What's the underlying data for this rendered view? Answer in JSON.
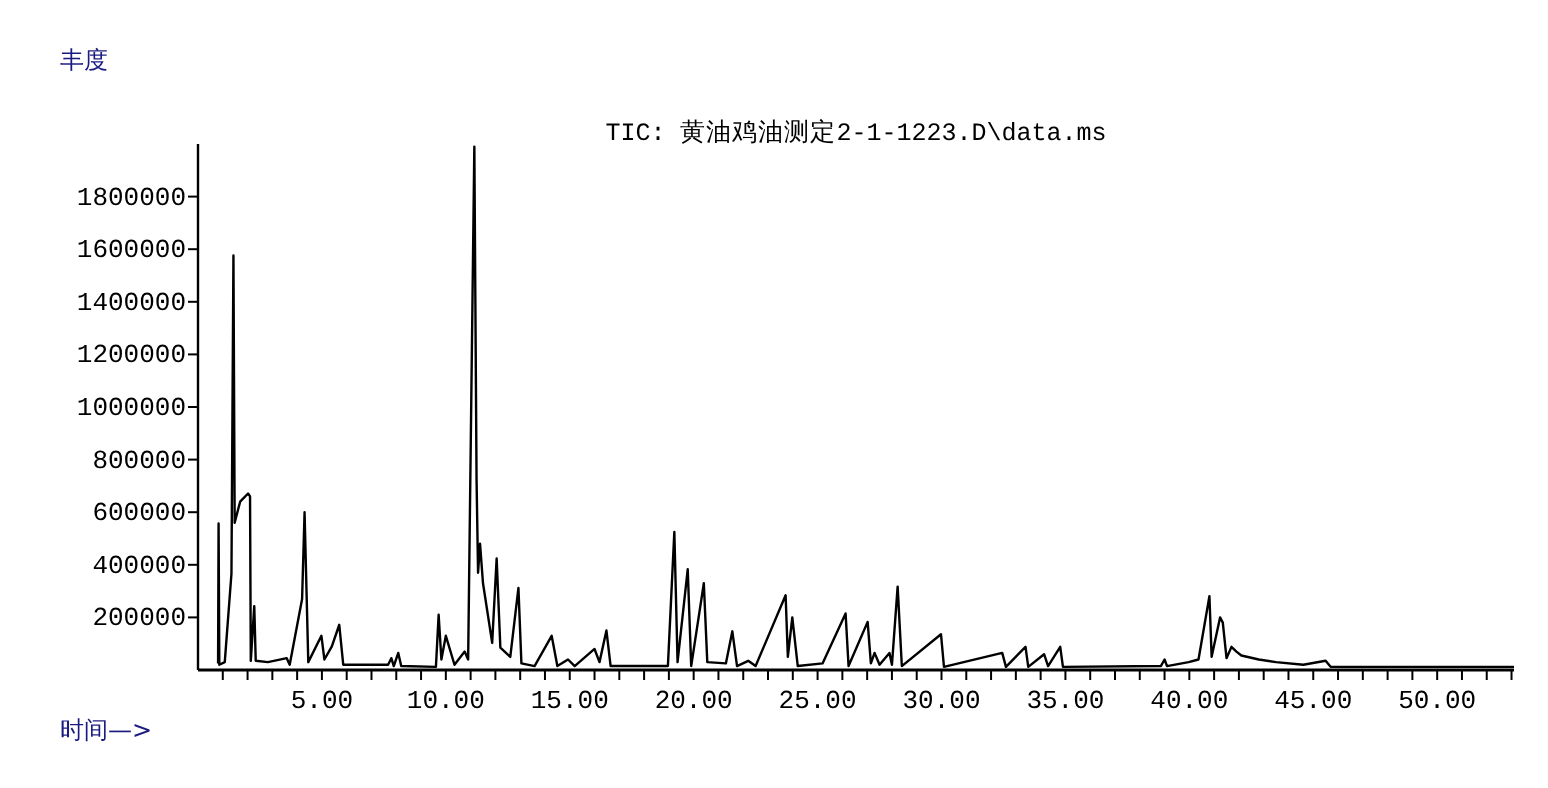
{
  "chart_data": {
    "type": "line",
    "title": "TIC: 黄油鸡油测定2-1-1223.D\\data.ms",
    "ylabel": "丰度",
    "xlabel": "时间—>",
    "xlim": [
      0,
      53.1
    ],
    "ylim": [
      0,
      2000000
    ],
    "xticks": [
      {
        "value": 1,
        "label": null
      },
      {
        "value": 2,
        "label": null
      },
      {
        "value": 3,
        "label": null
      },
      {
        "value": 4,
        "label": null
      },
      {
        "value": 5,
        "label": "5.00"
      },
      {
        "value": 6,
        "label": null
      },
      {
        "value": 7,
        "label": null
      },
      {
        "value": 8,
        "label": null
      },
      {
        "value": 9,
        "label": null
      },
      {
        "value": 10,
        "label": "10.00"
      },
      {
        "value": 11,
        "label": null
      },
      {
        "value": 12,
        "label": null
      },
      {
        "value": 13,
        "label": null
      },
      {
        "value": 14,
        "label": null
      },
      {
        "value": 15,
        "label": "15.00"
      },
      {
        "value": 16,
        "label": null
      },
      {
        "value": 17,
        "label": null
      },
      {
        "value": 18,
        "label": null
      },
      {
        "value": 19,
        "label": null
      },
      {
        "value": 20,
        "label": "20.00"
      },
      {
        "value": 21,
        "label": null
      },
      {
        "value": 22,
        "label": null
      },
      {
        "value": 23,
        "label": null
      },
      {
        "value": 24,
        "label": null
      },
      {
        "value": 25,
        "label": "25.00"
      },
      {
        "value": 26,
        "label": null
      },
      {
        "value": 27,
        "label": null
      },
      {
        "value": 28,
        "label": null
      },
      {
        "value": 29,
        "label": null
      },
      {
        "value": 30,
        "label": "30.00"
      },
      {
        "value": 31,
        "label": null
      },
      {
        "value": 32,
        "label": null
      },
      {
        "value": 33,
        "label": null
      },
      {
        "value": 34,
        "label": null
      },
      {
        "value": 35,
        "label": "35.00"
      },
      {
        "value": 36,
        "label": null
      },
      {
        "value": 37,
        "label": null
      },
      {
        "value": 38,
        "label": null
      },
      {
        "value": 39,
        "label": null
      },
      {
        "value": 40,
        "label": "40.00"
      },
      {
        "value": 41,
        "label": null
      },
      {
        "value": 42,
        "label": null
      },
      {
        "value": 43,
        "label": null
      },
      {
        "value": 44,
        "label": null
      },
      {
        "value": 45,
        "label": "45.00"
      },
      {
        "value": 46,
        "label": null
      },
      {
        "value": 47,
        "label": null
      },
      {
        "value": 48,
        "label": null
      },
      {
        "value": 49,
        "label": null
      },
      {
        "value": 50,
        "label": "50.00"
      },
      {
        "value": 51,
        "label": null
      },
      {
        "value": 52,
        "label": null
      },
      {
        "value": 53,
        "label": null
      }
    ],
    "yticks": [
      200000,
      400000,
      600000,
      800000,
      1000000,
      1200000,
      1400000,
      1600000,
      1800000
    ],
    "grid": false,
    "series": [
      {
        "color": "#000000",
        "x": [
          0.81,
          0.83,
          0.86,
          1.08,
          1.35,
          1.43,
          1.48,
          1.7,
          2.02,
          2.1,
          2.13,
          2.27,
          2.33,
          2.82,
          3.58,
          3.7,
          4.2,
          4.3,
          4.45,
          4.98,
          5.1,
          5.4,
          5.7,
          5.86,
          7.67,
          7.8,
          7.9,
          8.08,
          8.2,
          9.6,
          9.71,
          9.82,
          10.0,
          10.35,
          10.76,
          10.9,
          11.15,
          11.24,
          11.3,
          11.38,
          11.5,
          11.87,
          12.05,
          12.2,
          12.6,
          12.93,
          13.05,
          13.58,
          14.27,
          14.5,
          14.93,
          15.2,
          16.0,
          16.2,
          16.48,
          16.65,
          18.96,
          19.22,
          19.35,
          19.76,
          19.9,
          20.41,
          20.55,
          21.3,
          21.56,
          21.75,
          22.2,
          22.5,
          23.71,
          23.8,
          23.98,
          24.2,
          25.2,
          26.13,
          26.25,
          27.02,
          27.15,
          27.3,
          27.5,
          27.9,
          28.0,
          28.23,
          28.4,
          29.98,
          30.1,
          32.45,
          32.6,
          33.39,
          33.5,
          34.14,
          34.3,
          34.79,
          34.9,
          38.85,
          39.0,
          39.1,
          39.97,
          40.37,
          40.81,
          40.9,
          41.24,
          41.35,
          41.5,
          41.7,
          41.9,
          42.1,
          42.8,
          43.5,
          44.6,
          45.5,
          45.7,
          53.1
        ],
        "values": [
          25000,
          557000,
          20000,
          30000,
          367000,
          1576000,
          560000,
          640000,
          671000,
          660000,
          35000,
          243000,
          35000,
          30000,
          45000,
          20000,
          270000,
          600000,
          30000,
          130000,
          40000,
          90000,
          172000,
          20000,
          20000,
          45000,
          15000,
          65000,
          15000,
          12000,
          210000,
          40000,
          130000,
          20000,
          70000,
          40000,
          1990000,
          722000,
          370000,
          480000,
          330000,
          103000,
          424000,
          85000,
          50000,
          312000,
          25000,
          15000,
          130000,
          15000,
          40000,
          15000,
          80000,
          30000,
          150000,
          15000,
          15000,
          525000,
          30000,
          383000,
          15000,
          330000,
          30000,
          25000,
          147000,
          15000,
          35000,
          15000,
          284000,
          50000,
          200000,
          15000,
          25000,
          215000,
          15000,
          183000,
          25000,
          65000,
          20000,
          65000,
          20000,
          317000,
          15000,
          136000,
          12000,
          65000,
          12000,
          88000,
          12000,
          60000,
          15000,
          88000,
          12000,
          15000,
          40000,
          15000,
          30000,
          40000,
          281000,
          50000,
          200000,
          180000,
          45000,
          88000,
          70000,
          55000,
          40000,
          30000,
          20000,
          35000,
          12000,
          12000
        ]
      }
    ]
  }
}
